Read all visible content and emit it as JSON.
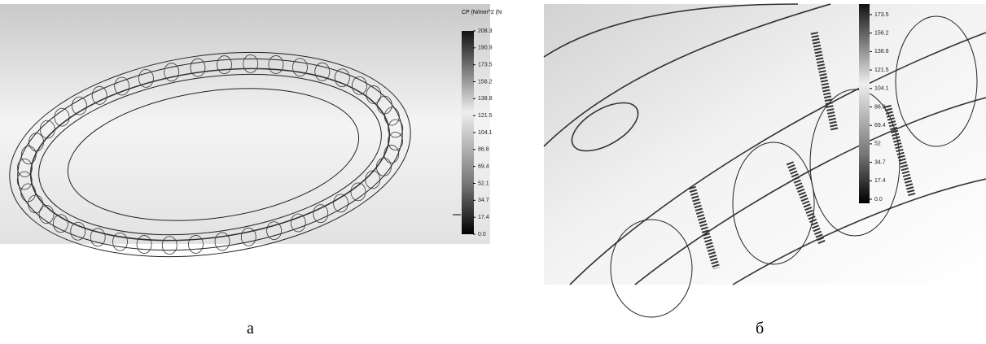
{
  "panels": [
    {
      "caption": "а",
      "colorbar": {
        "title": "CP (N/mm^2 (N",
        "ticks": [
          "208.3",
          "190.9",
          "173.5",
          "156.2",
          "138.8",
          "121.5",
          "104.1",
          "86.8",
          "69.4",
          "52.1",
          "34.7",
          "17.4",
          "0.0"
        ]
      }
    },
    {
      "caption": "б",
      "colorbar": {
        "ticks": [
          "173.5",
          "156.2",
          "138.8",
          "121.5",
          "104.1",
          "86.8",
          "69.4",
          "52",
          "34.7",
          "17.4",
          "0.0"
        ]
      }
    }
  ]
}
